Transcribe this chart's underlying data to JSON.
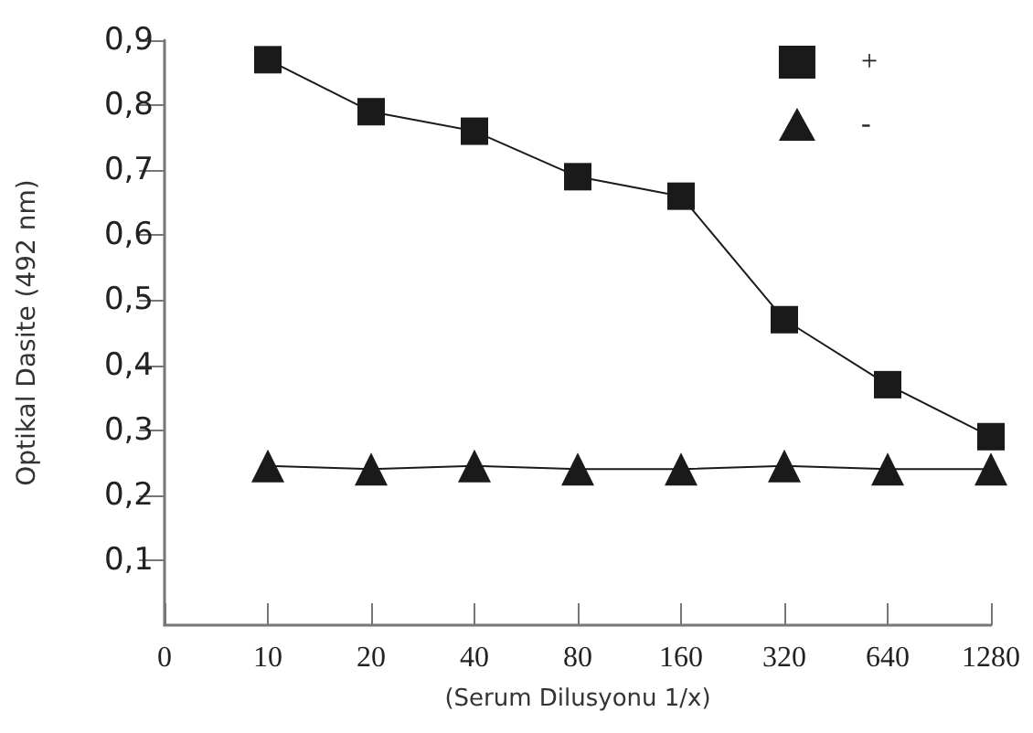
{
  "chart_data": {
    "type": "line",
    "xlabel": "(Serum Dilusyonu 1/x)",
    "ylabel": "Optikal Dasite (492 nm)",
    "categories": [
      "0",
      "10",
      "20",
      "40",
      "80",
      "160",
      "320",
      "640",
      "1280"
    ],
    "series": [
      {
        "name": "+",
        "color": "#1a1a1a",
        "marker": "square",
        "values": [
          null,
          0.87,
          0.79,
          0.76,
          0.69,
          0.66,
          0.47,
          0.37,
          0.29
        ]
      },
      {
        "name": "-",
        "color": "#1a1a1a",
        "marker": "triangle",
        "values": [
          null,
          0.245,
          0.24,
          0.245,
          0.24,
          0.24,
          0.245,
          0.24,
          0.24
        ]
      }
    ],
    "ylim": [
      0,
      0.9
    ],
    "yticks": [
      {
        "value": 0.1,
        "label": "0,1"
      },
      {
        "value": 0.2,
        "label": "0,2"
      },
      {
        "value": 0.3,
        "label": "0,3"
      },
      {
        "value": 0.4,
        "label": "0,4"
      },
      {
        "value": 0.5,
        "label": "0,5"
      },
      {
        "value": 0.6,
        "label": "0,6"
      },
      {
        "value": 0.7,
        "label": "0,7"
      },
      {
        "value": 0.8,
        "label": "0,8"
      },
      {
        "value": 0.9,
        "label": "0,9"
      }
    ],
    "legend": "top right",
    "grid": false,
    "line_style": "solid"
  }
}
